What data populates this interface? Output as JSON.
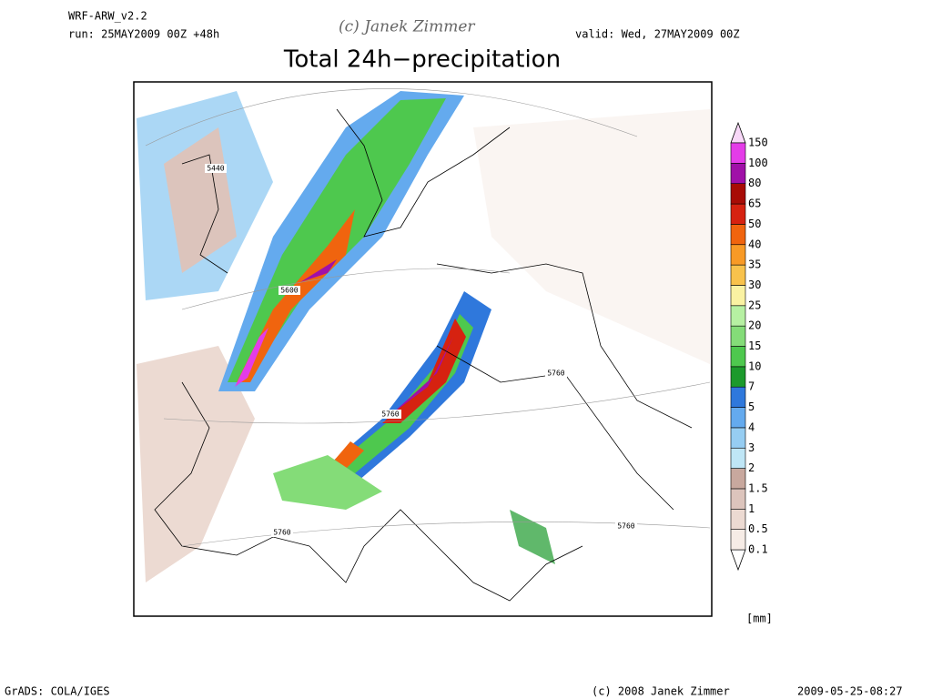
{
  "header": {
    "model": "WRF-ARW_v2.2",
    "run": "run: 25MAY2009 00Z +48h",
    "watermark": "(c) Janek Zimmer",
    "valid": "valid: Wed, 27MAY2009 00Z"
  },
  "title": "Total 24h−precipitation",
  "colorbar": {
    "levels": [
      0.1,
      0.5,
      1,
      1.5,
      2,
      3,
      4,
      5,
      7,
      10,
      15,
      20,
      25,
      30,
      35,
      40,
      50,
      65,
      80,
      100,
      150
    ],
    "colors": [
      "#f6ece6",
      "#ecdad2",
      "#dcc4bc",
      "#c8a89e",
      "#bfe6f6",
      "#96cdf2",
      "#64aaee",
      "#2f78dc",
      "#1c9a2c",
      "#4ec84e",
      "#84dc78",
      "#b6f0a2",
      "#faf2a2",
      "#f8c24c",
      "#f89a26",
      "#f0640e",
      "#d62210",
      "#a80c06",
      "#a010a8",
      "#e43ce8"
    ],
    "unit": "[mm]"
  },
  "contour_labels": [
    "5440",
    "5600",
    "5760",
    "5760",
    "5760",
    "5760"
  ],
  "footer": {
    "left": "GrADS: COLA/IGES",
    "center": "(c) 2008 Janek Zimmer",
    "right": "2009-05-25-08:27"
  }
}
